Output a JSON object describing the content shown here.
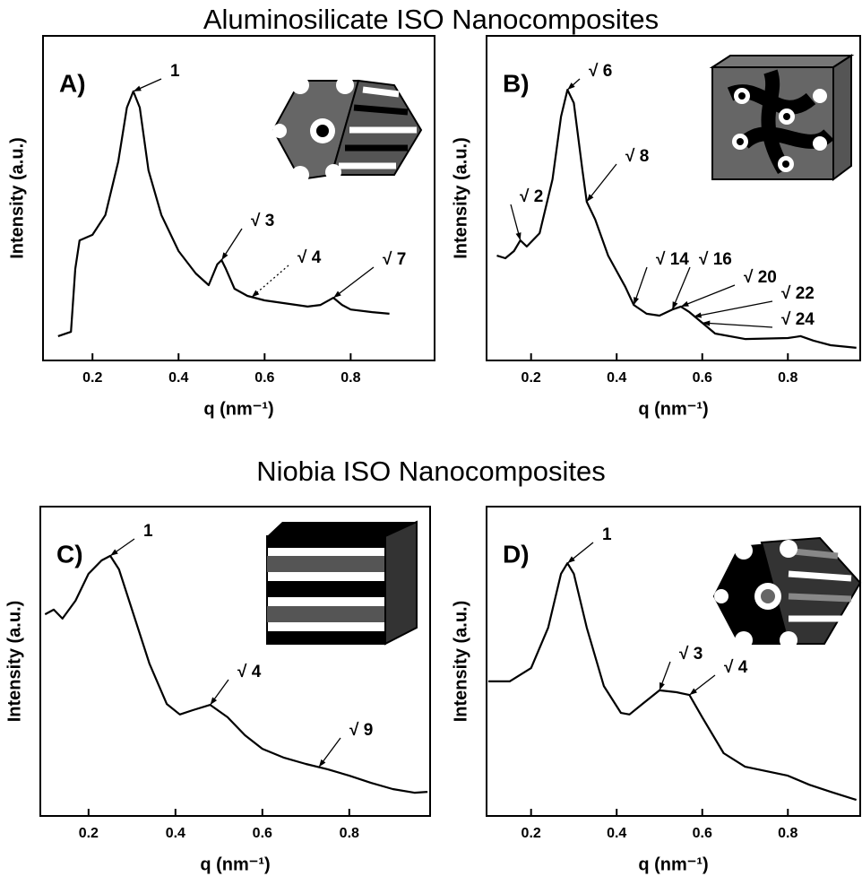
{
  "headings": [
    "Aluminosilicate ISO Nanocomposites",
    "Niobia ISO Nanocomposites"
  ],
  "chart_data": [
    {
      "type": "line",
      "panel": "A)",
      "xlabel": "q (nm⁻¹)",
      "ylabel": "Intensity (a.u.)",
      "color": "#000000",
      "xlim": [
        0.085,
        0.995
      ],
      "xticks": [
        0.2,
        0.4,
        0.6,
        0.8
      ],
      "ylim": [
        0,
        100
      ],
      "x": [
        0.12,
        0.15,
        0.16,
        0.17,
        0.2,
        0.23,
        0.26,
        0.28,
        0.295,
        0.31,
        0.33,
        0.36,
        0.4,
        0.44,
        0.47,
        0.49,
        0.5,
        0.51,
        0.53,
        0.56,
        0.6,
        0.7,
        0.73,
        0.76,
        0.78,
        0.8,
        0.85,
        0.89
      ],
      "values": [
        7.5,
        8.8,
        28.2,
        37.0,
        38.7,
        44.8,
        61.3,
        77.9,
        82.9,
        77.9,
        58.6,
        44.8,
        33.7,
        26.8,
        23.2,
        29.6,
        30.9,
        28.2,
        22.1,
        19.9,
        18.5,
        16.6,
        17.1,
        19.3,
        17.1,
        15.7,
        14.9,
        14.4
      ],
      "annotations": [
        {
          "text": "1",
          "x": 0.295,
          "y": 82.9,
          "style": "solid"
        },
        {
          "text": "√ 3",
          "x": 0.5,
          "y": 30.9,
          "style": "solid"
        },
        {
          "text": "√ 4",
          "x": 0.57,
          "y": 19.5,
          "style": "dotted"
        },
        {
          "text": "√ 7",
          "x": 0.76,
          "y": 19.3,
          "style": "solid"
        }
      ]
    },
    {
      "type": "line",
      "panel": "B)",
      "xlabel": "q (nm⁻¹)",
      "ylabel": "Intensity (a.u.)",
      "color": "#000000",
      "xlim": [
        0.096,
        0.969
      ],
      "xticks": [
        0.2,
        0.4,
        0.6,
        0.8
      ],
      "ylim": [
        0,
        100
      ],
      "x": [
        0.12,
        0.14,
        0.16,
        0.175,
        0.19,
        0.22,
        0.25,
        0.27,
        0.285,
        0.3,
        0.32,
        0.33,
        0.35,
        0.38,
        0.42,
        0.44,
        0.47,
        0.5,
        0.53,
        0.55,
        0.57,
        0.6,
        0.63,
        0.7,
        0.8,
        0.83,
        0.86,
        0.9,
        0.96
      ],
      "values": [
        32.3,
        31.5,
        33.7,
        37.0,
        35.1,
        39.2,
        55.8,
        75.1,
        83.4,
        79.3,
        58.6,
        48.9,
        43.4,
        32.3,
        22.7,
        17.1,
        14.4,
        13.8,
        15.7,
        16.6,
        14.9,
        11.6,
        8.3,
        6.6,
        6.9,
        7.5,
        6.1,
        4.7,
        3.9
      ],
      "annotations": [
        {
          "text": "√ 6",
          "x": 0.285,
          "y": 83.4,
          "style": "solid"
        },
        {
          "text": "√ 8",
          "x": 0.33,
          "y": 48.9,
          "style": "solid"
        },
        {
          "text": "√ 2",
          "x": 0.175,
          "y": 37.0,
          "style": "solid"
        },
        {
          "text": "√ 14",
          "x": 0.44,
          "y": 17.1,
          "style": "solid"
        },
        {
          "text": "√ 16",
          "x": 0.53,
          "y": 15.7,
          "style": "solid"
        },
        {
          "text": "√ 20",
          "x": 0.55,
          "y": 16.6,
          "style": "solid"
        },
        {
          "text": "√ 22",
          "x": 0.58,
          "y": 13.5,
          "style": "solid"
        },
        {
          "text": "√ 24",
          "x": 0.6,
          "y": 11.6,
          "style": "solid"
        }
      ]
    },
    {
      "type": "line",
      "panel": "C)",
      "xlabel": "q (nm⁻¹)",
      "ylabel": "Intensity (a.u.)",
      "color": "#000000",
      "xlim": [
        0.089,
        0.986
      ],
      "xticks": [
        0.2,
        0.4,
        0.6,
        0.8
      ],
      "ylim": [
        0,
        100
      ],
      "x": [
        0.1,
        0.12,
        0.14,
        0.17,
        0.2,
        0.23,
        0.25,
        0.27,
        0.3,
        0.34,
        0.38,
        0.41,
        0.44,
        0.48,
        0.52,
        0.56,
        0.6,
        0.65,
        0.7,
        0.75,
        0.8,
        0.85,
        0.9,
        0.95,
        0.98
      ],
      "values": [
        65.2,
        66.7,
        63.8,
        69.6,
        78.3,
        82.6,
        84.1,
        79.7,
        66.7,
        49.3,
        36.2,
        32.8,
        34.2,
        35.9,
        31.9,
        26.1,
        21.7,
        18.8,
        16.8,
        15.1,
        13.0,
        10.7,
        8.7,
        7.5,
        7.8
      ],
      "annotations": [
        {
          "text": "1",
          "x": 0.25,
          "y": 84.1,
          "style": "solid"
        },
        {
          "text": "√ 4",
          "x": 0.48,
          "y": 35.9,
          "style": "solid"
        },
        {
          "text": "√ 9",
          "x": 0.73,
          "y": 15.8,
          "style": "solid"
        }
      ]
    },
    {
      "type": "line",
      "panel": "D)",
      "xlabel": "q (nm⁻¹)",
      "ylabel": "Intensity (a.u.)",
      "color": "#000000",
      "xlim": [
        0.096,
        0.969
      ],
      "xticks": [
        0.2,
        0.4,
        0.6,
        0.8
      ],
      "ylim": [
        0,
        100
      ],
      "x": [
        0.1,
        0.15,
        0.2,
        0.24,
        0.27,
        0.285,
        0.3,
        0.33,
        0.37,
        0.41,
        0.43,
        0.46,
        0.5,
        0.54,
        0.57,
        0.6,
        0.65,
        0.7,
        0.8,
        0.85,
        0.9,
        0.96
      ],
      "values": [
        43.5,
        43.5,
        47.8,
        60.9,
        78.3,
        81.7,
        78.3,
        60.9,
        42.0,
        33.3,
        32.8,
        36.2,
        40.6,
        40.0,
        39.1,
        31.9,
        20.3,
        15.9,
        13.0,
        10.1,
        7.8,
        5.2
      ],
      "annotations": [
        {
          "text": "1",
          "x": 0.285,
          "y": 81.7,
          "style": "solid"
        },
        {
          "text": "√ 3",
          "x": 0.5,
          "y": 40.6,
          "style": "solid"
        },
        {
          "text": "√ 4",
          "x": 0.57,
          "y": 39.1,
          "style": "solid"
        }
      ]
    }
  ]
}
